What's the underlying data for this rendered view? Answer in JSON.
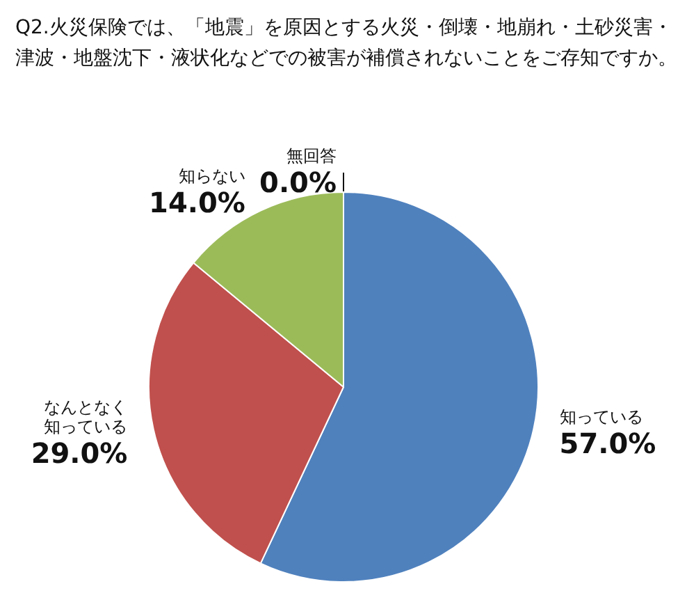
{
  "chart_data": {
    "type": "pie",
    "title": "Q2.火災保険では、「地震」を原因とする火災・倒壊・地崩れ・土砂災害・津波・地盤沈下・液状化などでの被害が補償されないことをご存知ですか。",
    "categories": [
      "知っている",
      "なんとなく知っている",
      "知らない",
      "無回答"
    ],
    "values": [
      57.0,
      29.0,
      14.0,
      0.0
    ],
    "colors": [
      "#4f81bd",
      "#c0504d",
      "#9bbb59",
      "#8064a2"
    ],
    "value_labels": [
      "57.0%",
      "29.0%",
      "14.0%",
      "0.0%"
    ],
    "legend": false
  }
}
